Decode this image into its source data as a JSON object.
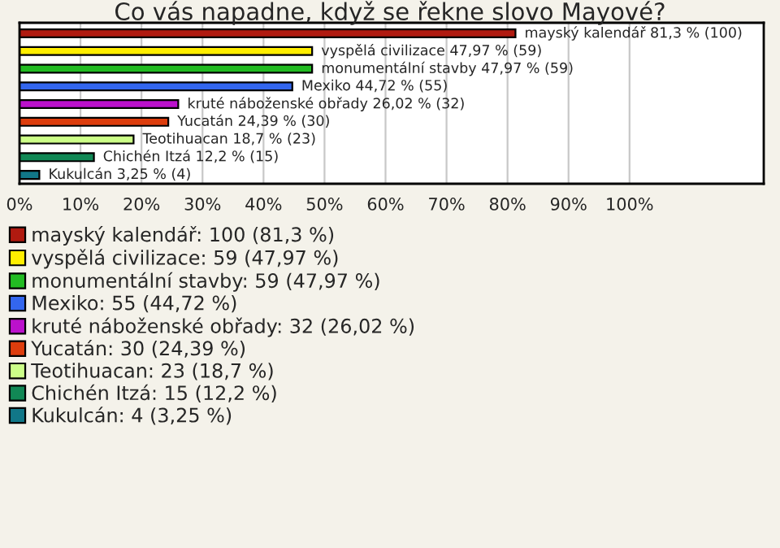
{
  "chart_data": {
    "type": "bar",
    "orientation": "horizontal",
    "title": "Co vás napadne, když se řekne slovo Mayové?",
    "categories": [
      null,
      null,
      null,
      null,
      null,
      null,
      null,
      null,
      null
    ],
    "series": [
      {
        "name": "mayský kalendář: 100 (81,3 %)",
        "color": "#b01a10",
        "values": [
          81.3,
          null,
          null,
          null,
          null,
          null,
          null,
          null,
          null
        ],
        "value_labels": [
          "mayský kalendář 81,3 % (100)",
          null,
          null,
          null,
          null,
          null,
          null,
          null,
          null
        ]
      },
      {
        "name": "vyspělá civilizace: 59 (47,97 %)",
        "color": "#ffee00",
        "values": [
          null,
          47.97,
          null,
          null,
          null,
          null,
          null,
          null,
          null
        ],
        "value_labels": [
          null,
          "vyspělá civilizace 47,97 % (59)",
          null,
          null,
          null,
          null,
          null,
          null,
          null
        ]
      },
      {
        "name": "monumentální stavby: 59 (47,97 %)",
        "color": "#22bb22",
        "values": [
          null,
          null,
          47.97,
          null,
          null,
          null,
          null,
          null,
          null
        ],
        "value_labels": [
          null,
          null,
          "monumentální stavby 47,97 % (59)",
          null,
          null,
          null,
          null,
          null,
          null
        ]
      },
      {
        "name": "Mexiko: 55 (44,72 %)",
        "color": "#3366ee",
        "values": [
          null,
          null,
          null,
          44.72,
          null,
          null,
          null,
          null,
          null
        ],
        "value_labels": [
          null,
          null,
          null,
          "Mexiko 44,72 % (55)",
          null,
          null,
          null,
          null,
          null
        ]
      },
      {
        "name": "kruté náboženské obřady: 32 (26,02 %)",
        "color": "#bb11cc",
        "values": [
          null,
          null,
          null,
          null,
          26.02,
          null,
          null,
          null,
          null
        ],
        "value_labels": [
          null,
          null,
          null,
          null,
          "kruté náboženské obřady 26,02 % (32)",
          null,
          null,
          null,
          null
        ]
      },
      {
        "name": "Yucatán: 30 (24,39 %)",
        "color": "#dd3d0d",
        "values": [
          null,
          null,
          null,
          null,
          null,
          24.39,
          null,
          null,
          null
        ],
        "value_labels": [
          null,
          null,
          null,
          null,
          null,
          "Yucatán 24,39 % (30)",
          null,
          null,
          null
        ]
      },
      {
        "name": "Teotihuacan: 23 (18,7 %)",
        "color": "#ccff88",
        "values": [
          null,
          null,
          null,
          null,
          null,
          null,
          18.7,
          null,
          null
        ],
        "value_labels": [
          null,
          null,
          null,
          null,
          null,
          null,
          "Teotihuacan 18,7 % (23)",
          null,
          null
        ]
      },
      {
        "name": "Chichén Itzá: 15 (12,2 %)",
        "color": "#118855",
        "values": [
          null,
          null,
          null,
          null,
          null,
          null,
          null,
          12.2,
          null
        ],
        "value_labels": [
          null,
          null,
          null,
          null,
          null,
          null,
          null,
          "Chichén Itzá 12,2 % (15)",
          null
        ]
      },
      {
        "name": "Kukulcán: 4 (3,25 %)",
        "color": "#117788",
        "values": [
          null,
          null,
          null,
          null,
          null,
          null,
          null,
          null,
          3.25
        ],
        "value_labels": [
          null,
          null,
          null,
          null,
          null,
          null,
          null,
          null,
          "Kukulcán 3,25 % (4)"
        ]
      }
    ],
    "xlim": [
      0,
      122
    ],
    "xticks": [
      {
        "value": 0,
        "label": "0%"
      },
      {
        "value": 10,
        "label": "10%"
      },
      {
        "value": 20,
        "label": "20%"
      },
      {
        "value": 30,
        "label": "30%"
      },
      {
        "value": 40,
        "label": "40%"
      },
      {
        "value": 50,
        "label": "50%"
      },
      {
        "value": 60,
        "label": "60%"
      },
      {
        "value": 70,
        "label": "70%"
      },
      {
        "value": 80,
        "label": "80%"
      },
      {
        "value": 90,
        "label": "90%"
      },
      {
        "value": 100,
        "label": "100%"
      }
    ],
    "grid": "x",
    "legend": "bottom"
  }
}
